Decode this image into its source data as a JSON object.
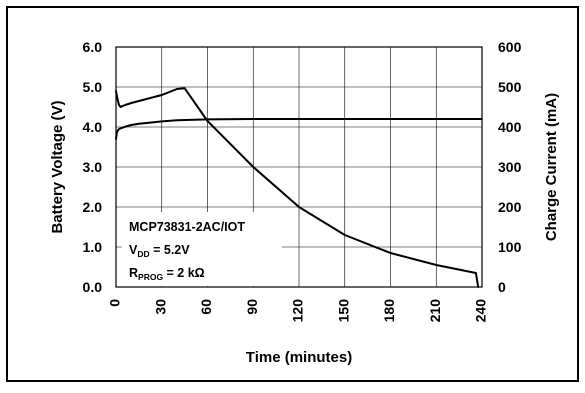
{
  "chart_data": {
    "type": "line",
    "x": {
      "label": "Time (minutes)",
      "ticks": [
        "0",
        "30",
        "60",
        "90",
        "120",
        "150",
        "180",
        "210",
        "240"
      ],
      "range": [
        0,
        240
      ]
    },
    "y_left": {
      "label": "Battery Voltage (V)",
      "ticks": [
        "0.0",
        "1.0",
        "2.0",
        "3.0",
        "4.0",
        "5.0",
        "6.0"
      ],
      "range": [
        0,
        6
      ]
    },
    "y_right": {
      "label": "Charge Current (mA)",
      "ticks": [
        "0",
        "100",
        "200",
        "300",
        "400",
        "500",
        "600"
      ],
      "range": [
        0,
        600
      ]
    },
    "grid": true,
    "annotation": {
      "line1": "MCP73831-2AC/IOT",
      "line2_main": "V",
      "line2_sub": "DD",
      "line2_rest": " = 5.2V",
      "line3_main": "R",
      "line3_sub": "PROG",
      "line3_rest": " = 2 kΩ"
    },
    "series": [
      {
        "axis": "left",
        "x": [
          0,
          0.5,
          1,
          2,
          4,
          7,
          10,
          15,
          20,
          30,
          40,
          60,
          90,
          120,
          150,
          180,
          210,
          240
        ],
        "y": [
          3.7,
          3.85,
          3.9,
          3.95,
          3.98,
          4.02,
          4.05,
          4.08,
          4.1,
          4.14,
          4.17,
          4.19,
          4.2,
          4.2,
          4.2,
          4.2,
          4.2,
          4.2
        ]
      },
      {
        "axis": "right",
        "x": [
          0,
          1,
          2,
          3,
          4,
          6,
          10,
          20,
          30,
          40,
          45,
          60,
          90,
          120,
          150,
          180,
          210,
          236,
          237.5
        ],
        "y": [
          490,
          470,
          455,
          450,
          452,
          455,
          460,
          470,
          480,
          495,
          497,
          415,
          300,
          200,
          130,
          85,
          55,
          35,
          0
        ]
      }
    ]
  }
}
